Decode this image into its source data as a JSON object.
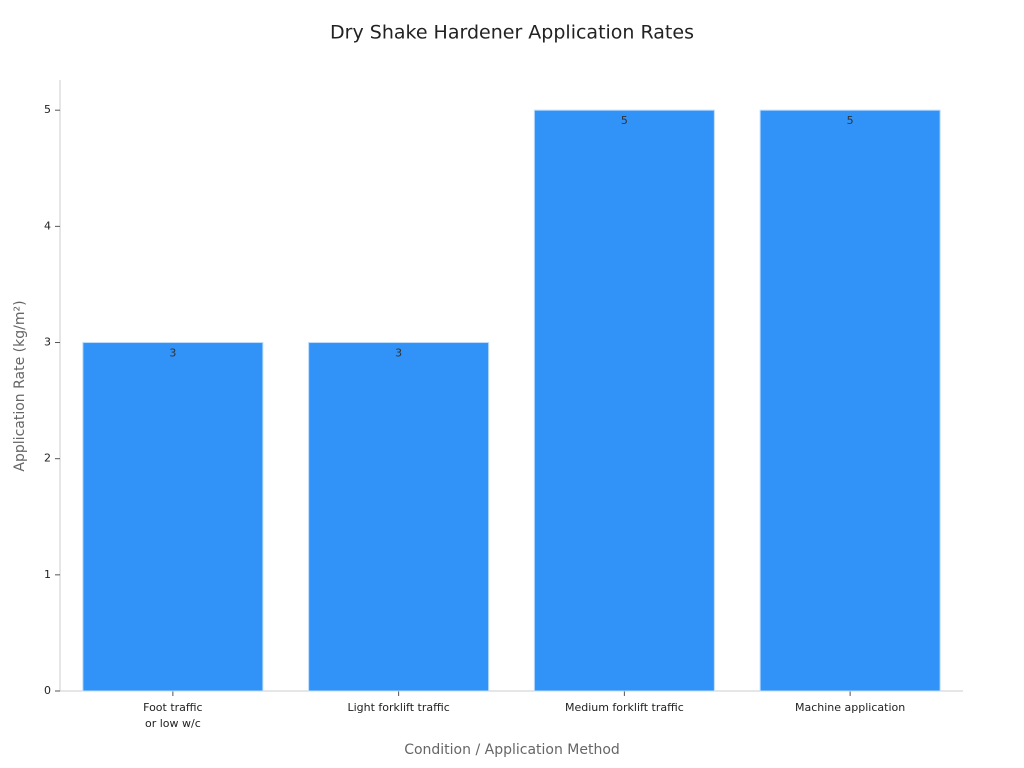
{
  "chart_data": {
    "type": "bar",
    "title": "Dry Shake Hardener Application Rates",
    "x_label": "Condition / Application Method",
    "y_label": "Application Rate (kg/m²)",
    "categories": [
      "Foot traffic\nor low w/c",
      "Light forklift traffic",
      "Medium forklift traffic",
      "Machine application"
    ],
    "values": [
      3,
      3,
      5,
      5
    ],
    "color": "#3192f8",
    "ylim": [
      0,
      5.26
    ],
    "yticks": [
      0,
      1,
      2,
      3,
      4,
      5
    ],
    "grid": false
  }
}
